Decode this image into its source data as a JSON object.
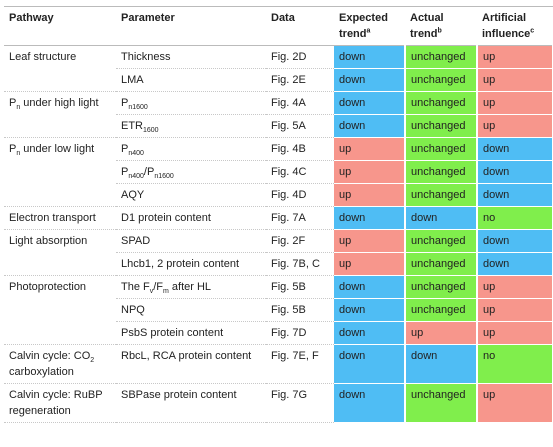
{
  "table": {
    "header": [
      "Pathway",
      "Parameter",
      "Data",
      [
        {
          "text": "Expected trend"
        },
        {
          "sup": "a"
        }
      ],
      [
        {
          "text": "Actual trend"
        },
        {
          "sup": "b"
        }
      ],
      [
        {
          "text": "Artificial influence"
        },
        {
          "sup": "c"
        }
      ]
    ],
    "trend_colors": {
      "down": "#4fbdf4",
      "unchanged": "#80ee4c",
      "up": "#f7968c",
      "no": "#80ee4c"
    },
    "groups": [
      {
        "pathway": "Leaf structure",
        "rows": [
          {
            "parameter": "Thickness",
            "data": "Fig. 2D",
            "expected": "down",
            "actual": "unchanged",
            "artificial": "up"
          },
          {
            "parameter": "LMA",
            "data": "Fig. 2E",
            "expected": "down",
            "actual": "unchanged",
            "artificial": "up"
          }
        ]
      },
      {
        "pathway": [
          {
            "text": "P"
          },
          {
            "sub": "n"
          },
          {
            "text": " under high light"
          }
        ],
        "rows": [
          {
            "parameter": [
              {
                "text": "P"
              },
              {
                "sub": "n1600"
              }
            ],
            "data": "Fig. 4A",
            "expected": "down",
            "actual": "unchanged",
            "artificial": "up"
          },
          {
            "parameter": [
              {
                "text": "ETR"
              },
              {
                "sub": "1600"
              }
            ],
            "data": "Fig. 5A",
            "expected": "down",
            "actual": "unchanged",
            "artificial": "up"
          }
        ]
      },
      {
        "pathway": [
          {
            "text": "P"
          },
          {
            "sub": "n"
          },
          {
            "text": " under low light"
          }
        ],
        "rows": [
          {
            "parameter": [
              {
                "text": "P"
              },
              {
                "sub": "n400"
              }
            ],
            "data": "Fig. 4B",
            "expected": "up",
            "actual": "unchanged",
            "artificial": "down"
          },
          {
            "parameter": [
              {
                "text": "P"
              },
              {
                "sub": "n400"
              },
              {
                "text": "/P"
              },
              {
                "sub": "n1600"
              }
            ],
            "data": "Fig. 4C",
            "expected": "up",
            "actual": "unchanged",
            "artificial": "down"
          },
          {
            "parameter": "AQY",
            "data": "Fig. 4D",
            "expected": "up",
            "actual": "unchanged",
            "artificial": "down"
          }
        ]
      },
      {
        "pathway": "Electron transport",
        "rows": [
          {
            "parameter": "D1 protein content",
            "data": "Fig. 7A",
            "expected": "down",
            "actual": "down",
            "artificial": "no"
          }
        ]
      },
      {
        "pathway": "Light absorption",
        "rows": [
          {
            "parameter": "SPAD",
            "data": "Fig. 2F",
            "expected": "up",
            "actual": "unchanged",
            "artificial": "down"
          },
          {
            "parameter": "Lhcb1, 2 protein content",
            "data": "Fig. 7B, C",
            "expected": "up",
            "actual": "unchanged",
            "artificial": "down"
          }
        ]
      },
      {
        "pathway": "Photoprotection",
        "rows": [
          {
            "parameter": [
              {
                "text": "The F"
              },
              {
                "sub": "v"
              },
              {
                "text": "/F"
              },
              {
                "sub": "m"
              },
              {
                "text": " after HL"
              }
            ],
            "data": "Fig. 5B",
            "expected": "down",
            "actual": "unchanged",
            "artificial": "up"
          },
          {
            "parameter": "NPQ",
            "data": "Fig. 5B",
            "expected": "down",
            "actual": "unchanged",
            "artificial": "up"
          },
          {
            "parameter": "PsbS protein content",
            "data": "Fig. 7D",
            "expected": "down",
            "actual": "up",
            "artificial": "up"
          }
        ]
      },
      {
        "pathway": [
          {
            "text": "Calvin cycle: CO"
          },
          {
            "sub": "2"
          },
          {
            "text": " carboxylation"
          }
        ],
        "rows": [
          {
            "parameter": "RbcL, RCA protein content",
            "data": "Fig. 7E, F",
            "expected": "down",
            "actual": "down",
            "artificial": "no"
          }
        ]
      },
      {
        "pathway": "Calvin cycle: RuBP regeneration",
        "rows": [
          {
            "parameter": "SBPase protein content",
            "data": "Fig. 7G",
            "expected": "down",
            "actual": "unchanged",
            "artificial": "up"
          }
        ]
      }
    ]
  }
}
